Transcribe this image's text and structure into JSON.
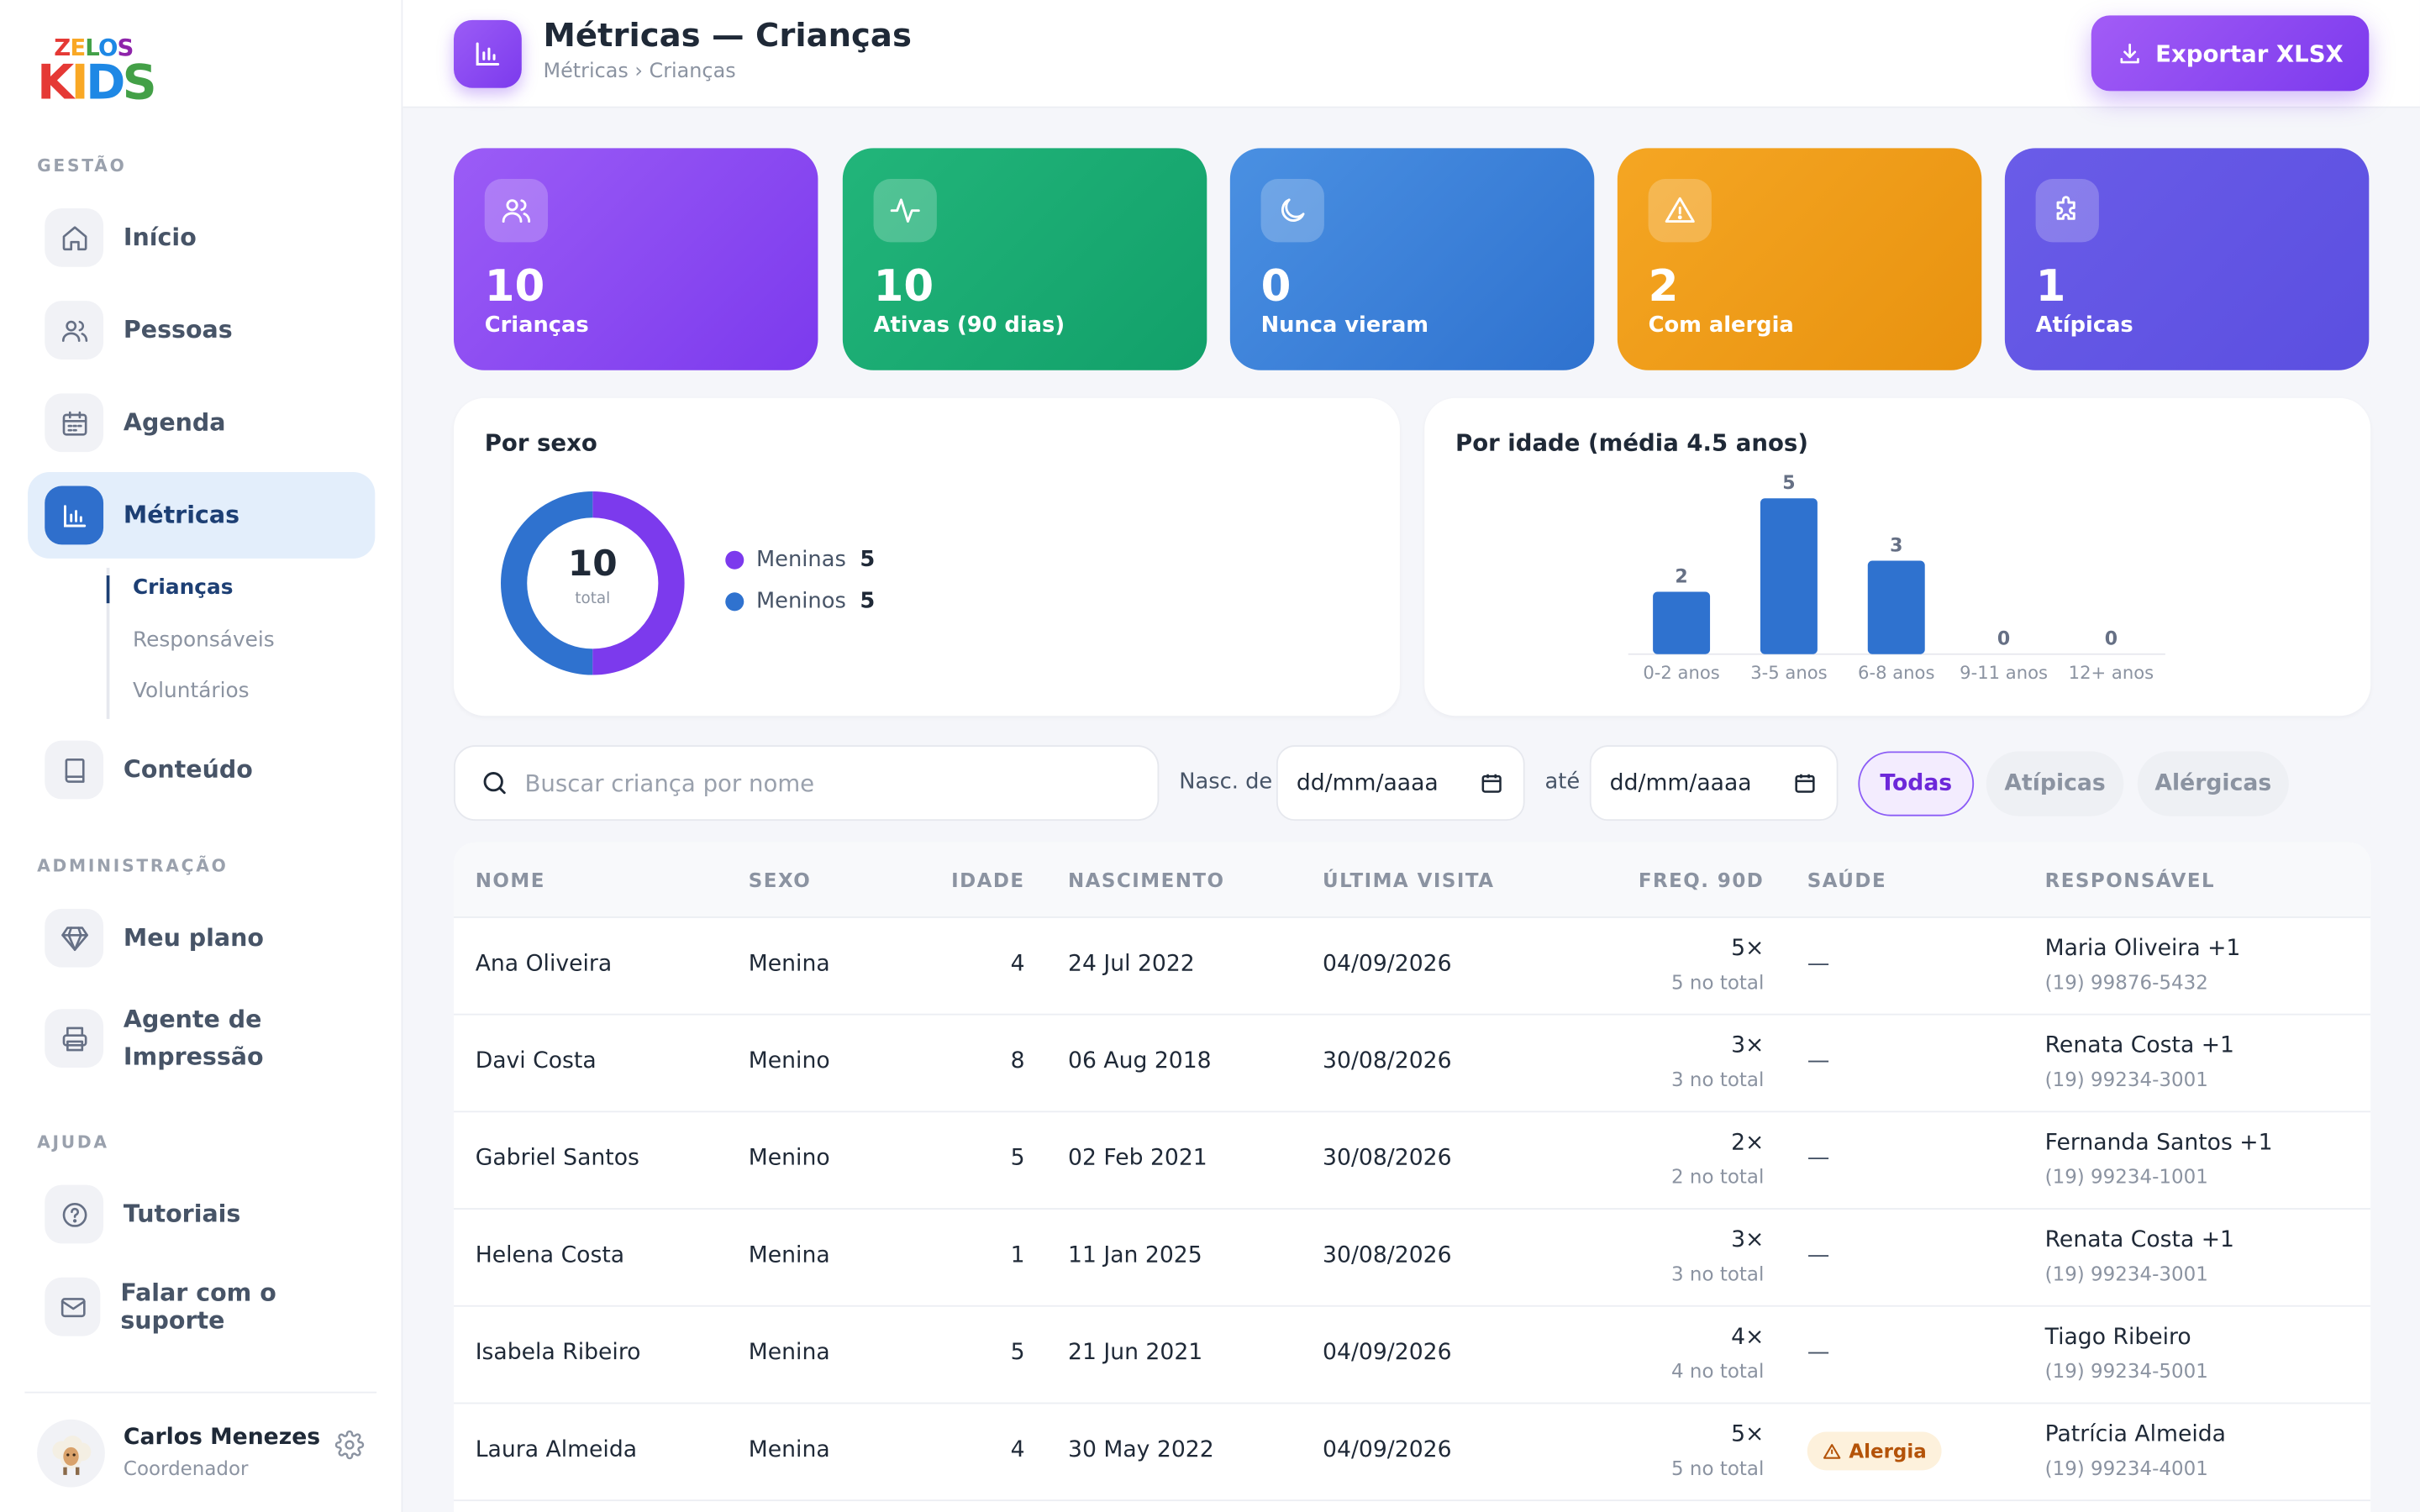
{
  "brand": {
    "line1": "ZELOS",
    "line2": "KIDS"
  },
  "sidebar": {
    "section_gestao": "GESTÃO",
    "section_admin": "ADMINISTRAÇÃO",
    "section_ajuda": "AJUDA",
    "items": [
      {
        "label": "Início",
        "icon": "home-icon"
      },
      {
        "label": "Pessoas",
        "icon": "users-icon"
      },
      {
        "label": "Agenda",
        "icon": "calendar-icon"
      },
      {
        "label": "Métricas",
        "icon": "bar-chart-icon",
        "active": true
      },
      {
        "label": "Conteúdo",
        "icon": "book-icon"
      },
      {
        "label": "Meu plano",
        "icon": "diamond-icon"
      },
      {
        "label": "Agente de Impressão",
        "label_line1": "Agente de",
        "label_line2": "Impressão",
        "icon": "printer-icon"
      },
      {
        "label": "Tutoriais",
        "icon": "help-circle-icon"
      },
      {
        "label": "Falar com o suporte",
        "icon": "mail-icon"
      }
    ],
    "subitems": [
      {
        "label": "Crianças",
        "active": true
      },
      {
        "label": "Responsáveis"
      },
      {
        "label": "Voluntários"
      }
    ],
    "user": {
      "name": "Carlos Menezes",
      "role": "Coordenador"
    }
  },
  "header": {
    "title": "Métricas — Crianças",
    "breadcrumb": "Métricas › Crianças",
    "export_label": "Exportar XLSX"
  },
  "stats": [
    {
      "value": "10",
      "label": "Crianças",
      "icon": "users-icon",
      "color_from": "#9b5cf6",
      "color_to": "#7c3aed"
    },
    {
      "value": "10",
      "label": "Ativas (90 dias)",
      "icon": "activity-icon",
      "color_from": "#22b57a",
      "color_to": "#12a06a"
    },
    {
      "value": "0",
      "label": "Nunca vieram",
      "icon": "moon-icon",
      "color_from": "#4a90e2",
      "color_to": "#2f72cf"
    },
    {
      "value": "2",
      "label": "Com alergia",
      "icon": "alert-triangle-icon",
      "color_from": "#f5a623",
      "color_to": "#e8920f"
    },
    {
      "value": "1",
      "label": "Atípicas",
      "icon": "puzzle-icon",
      "color_from": "#6a5ce8",
      "color_to": "#5b4fe0"
    }
  ],
  "sex_panel": {
    "title": "Por sexo",
    "total": "10",
    "total_label": "total",
    "legend": [
      {
        "label": "Meninas",
        "value": "5",
        "color": "#7c3aed"
      },
      {
        "label": "Meninos",
        "value": "5",
        "color": "#2f72cf"
      }
    ]
  },
  "age_panel": {
    "title": "Por idade (média 4.5 anos)"
  },
  "chart_data": [
    {
      "type": "pie",
      "title": "Por sexo",
      "categories": [
        "Meninas",
        "Meninos"
      ],
      "values": [
        5,
        5
      ],
      "colors": [
        "#7c3aed",
        "#2f72cf"
      ],
      "center_label": "10 total",
      "legend": "right"
    },
    {
      "type": "bar",
      "title": "Por idade (média 4.5 anos)",
      "categories": [
        "0-2 anos",
        "3-5 anos",
        "6-8 anos",
        "9-11 anos",
        "12+ anos"
      ],
      "values": [
        2,
        5,
        3,
        0,
        0
      ],
      "color": "#2f72cf",
      "grid": false
    }
  ],
  "filters": {
    "search_placeholder": "Buscar criança por nome",
    "date_from_label": "Nasc. de",
    "date_to_label": "até",
    "date_placeholder": "dd/mm/aaaa",
    "chips": [
      "Todas",
      "Atípicas",
      "Alérgicas"
    ],
    "active_chip": "Todas"
  },
  "table": {
    "headers": [
      "NOME",
      "SEXO",
      "IDADE",
      "NASCIMENTO",
      "ÚLTIMA VISITA",
      "FREQ. 90D",
      "SAÚDE",
      "RESPONSÁVEL"
    ],
    "rows": [
      {
        "nome": "Ana Oliveira",
        "sexo": "Menina",
        "idade": "4",
        "nascimento": "24 Jul 2022",
        "ultima": "04/09/2026",
        "freq": "5×",
        "freq_total": "5 no total",
        "saude": "—",
        "resp": "Maria Oliveira +1",
        "tel": "(19) 99876-5432"
      },
      {
        "nome": "Davi Costa",
        "sexo": "Menino",
        "idade": "8",
        "nascimento": "06 Aug 2018",
        "ultima": "30/08/2026",
        "freq": "3×",
        "freq_total": "3 no total",
        "saude": "—",
        "resp": "Renata Costa +1",
        "tel": "(19) 99234-3001"
      },
      {
        "nome": "Gabriel Santos",
        "sexo": "Menino",
        "idade": "5",
        "nascimento": "02 Feb 2021",
        "ultima": "30/08/2026",
        "freq": "2×",
        "freq_total": "2 no total",
        "saude": "—",
        "resp": "Fernanda Santos +1",
        "tel": "(19) 99234-1001"
      },
      {
        "nome": "Helena Costa",
        "sexo": "Menina",
        "idade": "1",
        "nascimento": "11 Jan 2025",
        "ultima": "30/08/2026",
        "freq": "3×",
        "freq_total": "3 no total",
        "saude": "—",
        "resp": "Renata Costa +1",
        "tel": "(19) 99234-3001"
      },
      {
        "nome": "Isabela Ribeiro",
        "sexo": "Menina",
        "idade": "5",
        "nascimento": "21 Jun 2021",
        "ultima": "04/09/2026",
        "freq": "4×",
        "freq_total": "4 no total",
        "saude": "—",
        "resp": "Tiago Ribeiro",
        "tel": "(19) 99234-5001"
      },
      {
        "nome": "Laura Almeida",
        "sexo": "Menina",
        "idade": "4",
        "nascimento": "30 May 2022",
        "ultima": "04/09/2026",
        "freq": "5×",
        "freq_total": "5 no total",
        "saude": "Alergia",
        "resp": "Patrícia Almeida",
        "tel": "(19) 99234-4001"
      }
    ]
  }
}
